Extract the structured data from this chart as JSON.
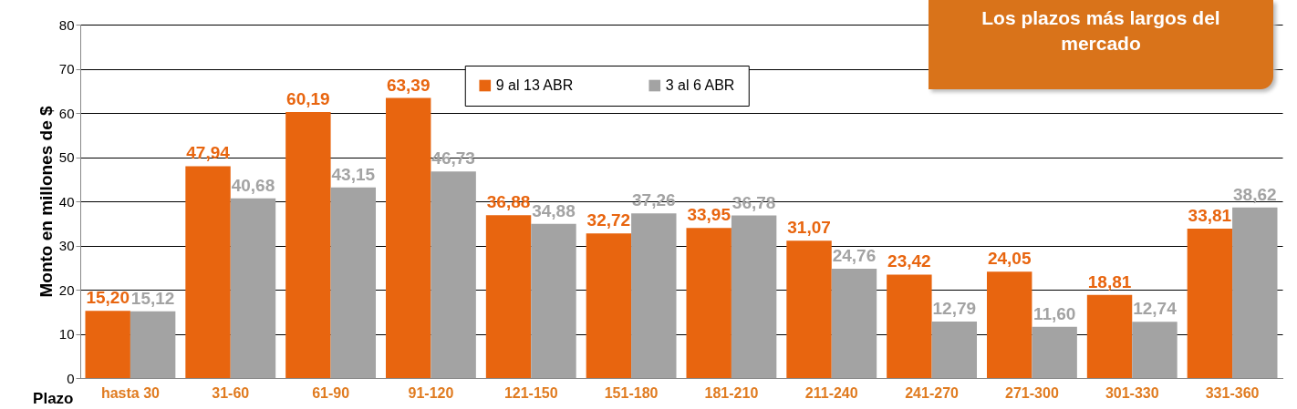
{
  "chart_data": {
    "type": "bar",
    "xlabel": "Plazo",
    "ylabel": "Monto en  millones de $",
    "categories": [
      "hasta 30",
      "31-60",
      "61-90",
      "91-120",
      "121-150",
      "151-180",
      "181-210",
      "211-240",
      "241-270",
      "271-300",
      "301-330",
      "331-360"
    ],
    "series": [
      {
        "name": "9 al 13 ABR",
        "color": "#e8650f",
        "values": [
          15.2,
          47.94,
          60.19,
          63.39,
          36.88,
          32.72,
          33.95,
          31.07,
          23.42,
          24.05,
          18.81,
          33.81
        ],
        "value_labels": [
          "15,20",
          "47,94",
          "60,19",
          "63,39",
          "36,88",
          "32,72",
          "33,95",
          "31,07",
          "23,42",
          "24,05",
          "18,81",
          "33,81"
        ]
      },
      {
        "name": "3 al 6 ABR",
        "color": "#a3a3a3",
        "values": [
          15.12,
          40.68,
          43.15,
          46.73,
          34.88,
          37.26,
          36.78,
          24.76,
          12.79,
          11.6,
          12.74,
          38.62
        ],
        "value_labels": [
          "15,12",
          "40,68",
          "43,15",
          "46,73",
          "34,88",
          "37,26",
          "36,78",
          "24,76",
          "12,79",
          "11,60",
          "12,74",
          "38,62"
        ]
      }
    ],
    "ylim": [
      0,
      80
    ],
    "yticks": [
      0,
      10,
      20,
      30,
      40,
      50,
      60,
      70,
      80
    ],
    "grid": "y",
    "legend": "top",
    "annotations": [
      "Los plazos más largos del mercado"
    ]
  }
}
